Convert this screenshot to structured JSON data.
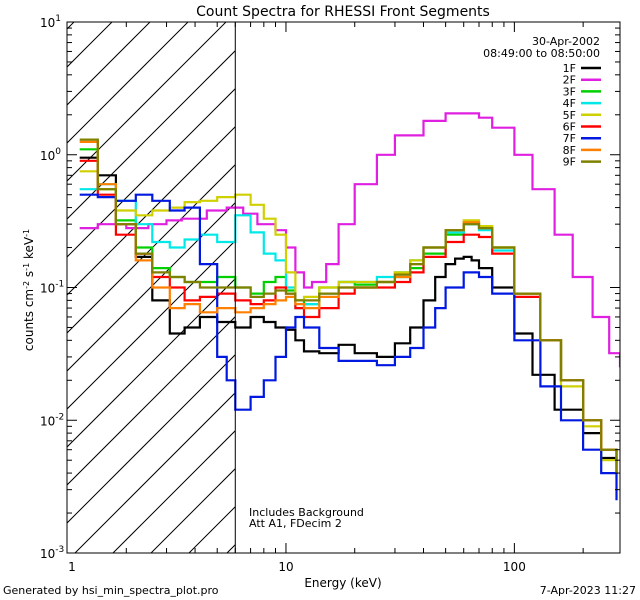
{
  "chart_data": {
    "type": "line",
    "title": "Count Spectra for RHESSI Front Segments",
    "xlabel": "Energy (keV)",
    "ylabel": "counts cm",
    "ylabel_sup1": "-2",
    "ylabel_mid": " s",
    "ylabel_sup2": "-1",
    "ylabel_end": " keV",
    "ylabel_sup3": "-1",
    "x_scale": "log",
    "y_scale": "log",
    "xlim": [
      1.1,
      290
    ],
    "ylim": [
      0.001,
      10
    ],
    "x_ticks": [
      {
        "value": 10,
        "label": "10"
      },
      {
        "value": 100,
        "label": "100"
      }
    ],
    "x_tick_one": {
      "value": 1,
      "label": "1"
    },
    "y_ticks": [
      {
        "value": 10,
        "base": "10",
        "exp": "1"
      },
      {
        "value": 1,
        "base": "10",
        "exp": "0"
      },
      {
        "value": 0.1,
        "base": "10",
        "exp": "-1"
      },
      {
        "value": 0.01,
        "base": "10",
        "exp": "-2"
      },
      {
        "value": 0.001,
        "base": "10",
        "exp": "-3"
      }
    ],
    "date": "30-Apr-2002",
    "time_range": "08:49:00 to 08:50:00",
    "attenuator_line_energy": 6,
    "hatch_region": [
      1.1,
      6
    ],
    "annotation_lines": [
      "Includes Background",
      "Att A1, FDecim 2"
    ],
    "series": [
      {
        "name": "1F",
        "color": "#000000",
        "points": [
          [
            1.25,
            0.95
          ],
          [
            1.5,
            0.7
          ],
          [
            1.8,
            0.3
          ],
          [
            2.2,
            0.17
          ],
          [
            2.6,
            0.08
          ],
          [
            3.1,
            0.045
          ],
          [
            3.6,
            0.05
          ],
          [
            4.2,
            0.06
          ],
          [
            5,
            0.055
          ],
          [
            6,
            0.05
          ],
          [
            7,
            0.06
          ],
          [
            8,
            0.055
          ],
          [
            9,
            0.05
          ],
          [
            10,
            0.048
          ],
          [
            11,
            0.04
          ],
          [
            12,
            0.033
          ],
          [
            14,
            0.032
          ],
          [
            17,
            0.037
          ],
          [
            20,
            0.032
          ],
          [
            25,
            0.03
          ],
          [
            30,
            0.038
          ],
          [
            35,
            0.05
          ],
          [
            40,
            0.08
          ],
          [
            45,
            0.12
          ],
          [
            50,
            0.15
          ],
          [
            55,
            0.165
          ],
          [
            60,
            0.17
          ],
          [
            65,
            0.16
          ],
          [
            70,
            0.14
          ],
          [
            80,
            0.1
          ],
          [
            100,
            0.045
          ],
          [
            120,
            0.022
          ],
          [
            150,
            0.012
          ],
          [
            200,
            0.008
          ],
          [
            240,
            0.0052
          ],
          [
            280,
            0.004
          ]
        ]
      },
      {
        "name": "2F",
        "color": "#e020e0",
        "points": [
          [
            1.25,
            0.28
          ],
          [
            1.5,
            0.3
          ],
          [
            2,
            0.28
          ],
          [
            2.5,
            0.3
          ],
          [
            3,
            0.32
          ],
          [
            3.5,
            0.33
          ],
          [
            4.5,
            0.38
          ],
          [
            5.5,
            0.4
          ],
          [
            6.5,
            0.36
          ],
          [
            7.5,
            0.3
          ],
          [
            9,
            0.27
          ],
          [
            10,
            0.2
          ],
          [
            11,
            0.13
          ],
          [
            12,
            0.1
          ],
          [
            13,
            0.11
          ],
          [
            15,
            0.15
          ],
          [
            17,
            0.3
          ],
          [
            20,
            0.6
          ],
          [
            25,
            1.0
          ],
          [
            30,
            1.4
          ],
          [
            40,
            1.8
          ],
          [
            50,
            2.05
          ],
          [
            60,
            2.05
          ],
          [
            70,
            1.9
          ],
          [
            80,
            1.6
          ],
          [
            100,
            1.0
          ],
          [
            120,
            0.55
          ],
          [
            150,
            0.25
          ],
          [
            180,
            0.12
          ],
          [
            220,
            0.06
          ],
          [
            260,
            0.032
          ],
          [
            290,
            0.025
          ]
        ]
      },
      {
        "name": "3F",
        "color": "#00d000",
        "points": [
          [
            1.25,
            1.1
          ],
          [
            1.5,
            0.55
          ],
          [
            1.8,
            0.32
          ],
          [
            2.2,
            0.2
          ],
          [
            2.6,
            0.14
          ],
          [
            3.1,
            0.12
          ],
          [
            3.6,
            0.11
          ],
          [
            4.2,
            0.11
          ],
          [
            5,
            0.12
          ],
          [
            6,
            0.1
          ],
          [
            7,
            0.09
          ],
          [
            8,
            0.11
          ],
          [
            9,
            0.12
          ],
          [
            10,
            0.095
          ],
          [
            11,
            0.08
          ],
          [
            12,
            0.075
          ],
          [
            14,
            0.1
          ],
          [
            17,
            0.11
          ],
          [
            20,
            0.105
          ],
          [
            25,
            0.11
          ],
          [
            30,
            0.12
          ],
          [
            35,
            0.14
          ],
          [
            40,
            0.18
          ],
          [
            50,
            0.25
          ],
          [
            60,
            0.3
          ],
          [
            70,
            0.28
          ],
          [
            80,
            0.2
          ],
          [
            100,
            0.09
          ],
          [
            130,
            0.04
          ],
          [
            160,
            0.02
          ],
          [
            200,
            0.01
          ],
          [
            240,
            0.006
          ],
          [
            280,
            0.004
          ]
        ]
      },
      {
        "name": "4F",
        "color": "#00e8e8",
        "points": [
          [
            1.25,
            0.55
          ],
          [
            1.5,
            0.6
          ],
          [
            1.8,
            0.45
          ],
          [
            2.2,
            0.3
          ],
          [
            2.6,
            0.22
          ],
          [
            3.1,
            0.2
          ],
          [
            3.6,
            0.23
          ],
          [
            4.2,
            0.25
          ],
          [
            5,
            0.22
          ],
          [
            6,
            0.35
          ],
          [
            7,
            0.26
          ],
          [
            8,
            0.18
          ],
          [
            9,
            0.16
          ],
          [
            10,
            0.1
          ],
          [
            11,
            0.07
          ],
          [
            12,
            0.075
          ],
          [
            14,
            0.09
          ],
          [
            17,
            0.11
          ],
          [
            20,
            0.11
          ],
          [
            25,
            0.12
          ],
          [
            30,
            0.13
          ],
          [
            35,
            0.16
          ],
          [
            40,
            0.2
          ],
          [
            50,
            0.26
          ],
          [
            60,
            0.3
          ],
          [
            70,
            0.27
          ],
          [
            80,
            0.19
          ],
          [
            100,
            0.09
          ],
          [
            130,
            0.04
          ],
          [
            160,
            0.02
          ],
          [
            200,
            0.01
          ],
          [
            240,
            0.006
          ],
          [
            280,
            0.004
          ]
        ]
      },
      {
        "name": "5F",
        "color": "#d0d000",
        "points": [
          [
            1.25,
            0.75
          ],
          [
            1.5,
            0.55
          ],
          [
            1.8,
            0.38
          ],
          [
            2.2,
            0.35
          ],
          [
            2.6,
            0.38
          ],
          [
            3.1,
            0.4
          ],
          [
            3.6,
            0.44
          ],
          [
            4.2,
            0.45
          ],
          [
            5,
            0.48
          ],
          [
            6,
            0.5
          ],
          [
            7,
            0.42
          ],
          [
            8,
            0.33
          ],
          [
            9,
            0.25
          ],
          [
            10,
            0.13
          ],
          [
            11,
            0.08
          ],
          [
            12,
            0.085
          ],
          [
            14,
            0.1
          ],
          [
            17,
            0.11
          ],
          [
            20,
            0.11
          ],
          [
            25,
            0.11
          ],
          [
            30,
            0.13
          ],
          [
            35,
            0.16
          ],
          [
            40,
            0.2
          ],
          [
            50,
            0.27
          ],
          [
            60,
            0.32
          ],
          [
            70,
            0.29
          ],
          [
            80,
            0.2
          ],
          [
            100,
            0.09
          ],
          [
            130,
            0.04
          ],
          [
            160,
            0.018
          ],
          [
            200,
            0.009
          ],
          [
            240,
            0.005
          ],
          [
            280,
            0.0035
          ]
        ]
      },
      {
        "name": "6F",
        "color": "#ff0000",
        "points": [
          [
            1.25,
            0.9
          ],
          [
            1.5,
            0.5
          ],
          [
            1.8,
            0.25
          ],
          [
            2.2,
            0.18
          ],
          [
            2.6,
            0.12
          ],
          [
            3.1,
            0.1
          ],
          [
            3.6,
            0.08
          ],
          [
            4.2,
            0.085
          ],
          [
            5,
            0.09
          ],
          [
            6,
            0.08
          ],
          [
            7,
            0.075
          ],
          [
            8,
            0.08
          ],
          [
            9,
            0.1
          ],
          [
            10,
            0.09
          ],
          [
            11,
            0.07
          ],
          [
            12,
            0.06
          ],
          [
            14,
            0.07
          ],
          [
            17,
            0.09
          ],
          [
            20,
            0.1
          ],
          [
            25,
            0.1
          ],
          [
            30,
            0.11
          ],
          [
            35,
            0.13
          ],
          [
            40,
            0.17
          ],
          [
            50,
            0.22
          ],
          [
            60,
            0.25
          ],
          [
            70,
            0.24
          ],
          [
            80,
            0.18
          ],
          [
            100,
            0.085
          ],
          [
            130,
            0.04
          ],
          [
            160,
            0.02
          ],
          [
            200,
            0.01
          ],
          [
            240,
            0.006
          ],
          [
            280,
            0.005
          ]
        ]
      },
      {
        "name": "7F",
        "color": "#0018e0",
        "points": [
          [
            1.25,
            0.5
          ],
          [
            1.5,
            0.48
          ],
          [
            1.8,
            0.45
          ],
          [
            2.2,
            0.5
          ],
          [
            2.6,
            0.45
          ],
          [
            3.1,
            0.38
          ],
          [
            3.6,
            0.4
          ],
          [
            4.2,
            0.15
          ],
          [
            5,
            0.03
          ],
          [
            5.5,
            0.02
          ],
          [
            6,
            0.012
          ],
          [
            7,
            0.015
          ],
          [
            8,
            0.02
          ],
          [
            9,
            0.03
          ],
          [
            10,
            0.05
          ],
          [
            11,
            0.06
          ],
          [
            12,
            0.05
          ],
          [
            14,
            0.035
          ],
          [
            17,
            0.028
          ],
          [
            20,
            0.028
          ],
          [
            25,
            0.026
          ],
          [
            30,
            0.03
          ],
          [
            35,
            0.035
          ],
          [
            40,
            0.05
          ],
          [
            45,
            0.07
          ],
          [
            50,
            0.1
          ],
          [
            60,
            0.13
          ],
          [
            70,
            0.12
          ],
          [
            80,
            0.09
          ],
          [
            100,
            0.04
          ],
          [
            130,
            0.018
          ],
          [
            160,
            0.01
          ],
          [
            200,
            0.006
          ],
          [
            240,
            0.004
          ],
          [
            280,
            0.0025
          ]
        ]
      },
      {
        "name": "8F",
        "color": "#ff8000",
        "points": [
          [
            1.25,
            1.25
          ],
          [
            1.5,
            0.6
          ],
          [
            1.8,
            0.3
          ],
          [
            2.2,
            0.16
          ],
          [
            2.6,
            0.1
          ],
          [
            3.1,
            0.07
          ],
          [
            3.6,
            0.075
          ],
          [
            4.2,
            0.065
          ],
          [
            5,
            0.07
          ],
          [
            6,
            0.065
          ],
          [
            7,
            0.07
          ],
          [
            8,
            0.075
          ],
          [
            9,
            0.08
          ],
          [
            10,
            0.085
          ],
          [
            11,
            0.075
          ],
          [
            12,
            0.07
          ],
          [
            14,
            0.085
          ],
          [
            17,
            0.1
          ],
          [
            20,
            0.1
          ],
          [
            25,
            0.11
          ],
          [
            30,
            0.12
          ],
          [
            35,
            0.15
          ],
          [
            40,
            0.2
          ],
          [
            50,
            0.27
          ],
          [
            60,
            0.31
          ],
          [
            70,
            0.28
          ],
          [
            80,
            0.2
          ],
          [
            100,
            0.09
          ],
          [
            130,
            0.04
          ],
          [
            160,
            0.02
          ],
          [
            200,
            0.01
          ],
          [
            240,
            0.006
          ],
          [
            280,
            0.004
          ]
        ]
      },
      {
        "name": "9F",
        "color": "#808000",
        "points": [
          [
            1.25,
            1.3
          ],
          [
            1.5,
            0.55
          ],
          [
            1.8,
            0.3
          ],
          [
            2.2,
            0.18
          ],
          [
            2.6,
            0.13
          ],
          [
            3.1,
            0.12
          ],
          [
            3.6,
            0.11
          ],
          [
            4.2,
            0.1
          ],
          [
            5,
            0.1
          ],
          [
            6,
            0.1
          ],
          [
            7,
            0.085
          ],
          [
            8,
            0.09
          ],
          [
            9,
            0.095
          ],
          [
            10,
            0.09
          ],
          [
            11,
            0.08
          ],
          [
            12,
            0.08
          ],
          [
            14,
            0.09
          ],
          [
            17,
            0.1
          ],
          [
            20,
            0.1
          ],
          [
            25,
            0.11
          ],
          [
            30,
            0.125
          ],
          [
            35,
            0.15
          ],
          [
            40,
            0.2
          ],
          [
            50,
            0.27
          ],
          [
            60,
            0.3
          ],
          [
            70,
            0.28
          ],
          [
            80,
            0.2
          ],
          [
            100,
            0.09
          ],
          [
            130,
            0.04
          ],
          [
            160,
            0.02
          ],
          [
            200,
            0.01
          ],
          [
            240,
            0.006
          ],
          [
            280,
            0.004
          ]
        ]
      }
    ]
  },
  "footer": {
    "generated_by": "Generated by hsi_min_spectra_plot.pro",
    "timestamp": "7-Apr-2023 11:27"
  }
}
